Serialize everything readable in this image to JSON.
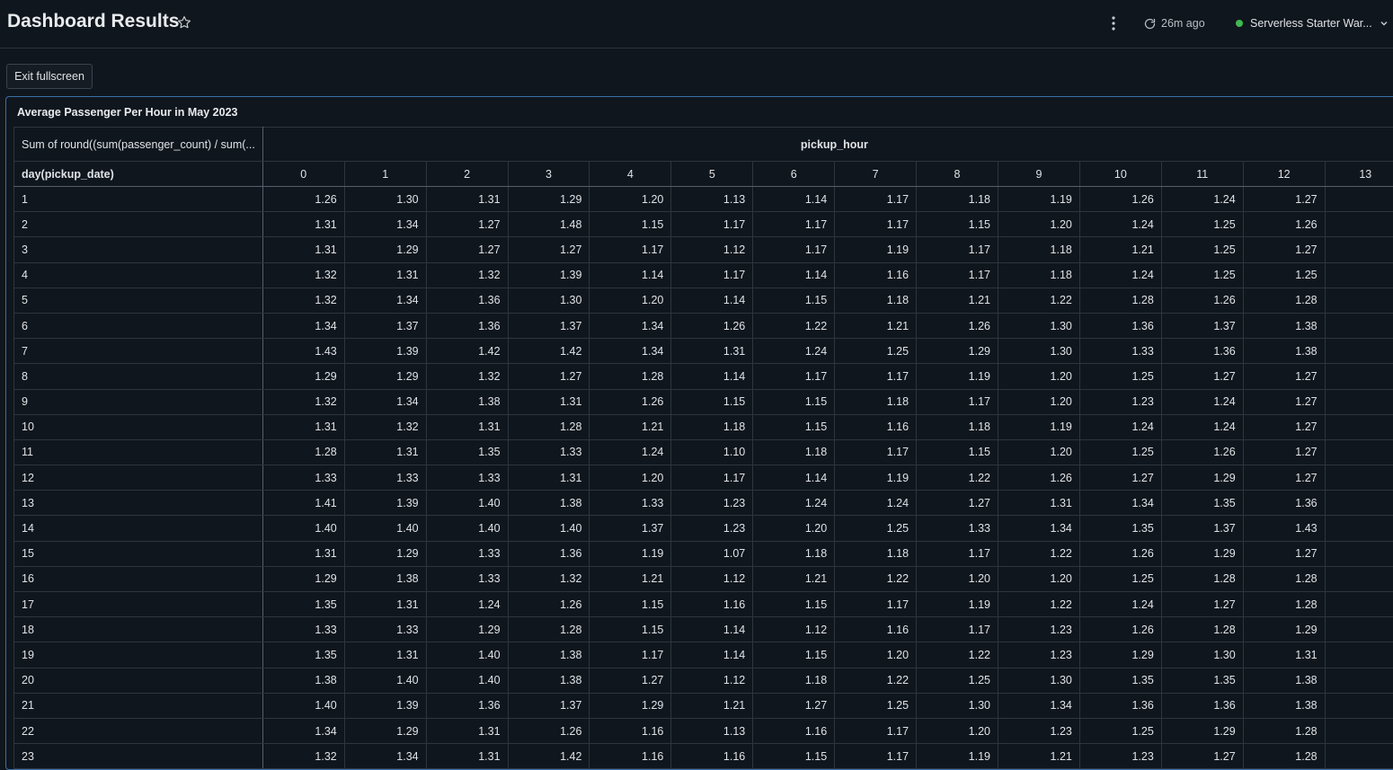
{
  "header": {
    "title": "Dashboard Results",
    "refresh_label": "26m ago",
    "warehouse_label": "Serverless Starter War..."
  },
  "toolbar": {
    "exit_fullscreen_label": "Exit fullscreen"
  },
  "colors": {
    "background": "#10161d",
    "panel_border": "#3a6fa8",
    "status_ok": "#3fb950"
  },
  "panel": {
    "title": "Average Passenger Per Hour in May 2023",
    "measure_label": "Sum of round((sum(passenger_count) / sum(...",
    "column_dimension": "pickup_hour",
    "row_dimension": "day(pickup_date)",
    "columns": [
      "0",
      "1",
      "2",
      "3",
      "4",
      "5",
      "6",
      "7",
      "8",
      "9",
      "10",
      "11",
      "12",
      "13"
    ],
    "rows": [
      {
        "label": "1",
        "values": [
          "1.26",
          "1.30",
          "1.31",
          "1.29",
          "1.20",
          "1.13",
          "1.14",
          "1.17",
          "1.18",
          "1.19",
          "1.26",
          "1.24",
          "1.27",
          ""
        ]
      },
      {
        "label": "2",
        "values": [
          "1.31",
          "1.34",
          "1.27",
          "1.48",
          "1.15",
          "1.17",
          "1.17",
          "1.17",
          "1.15",
          "1.20",
          "1.24",
          "1.25",
          "1.26",
          ""
        ]
      },
      {
        "label": "3",
        "values": [
          "1.31",
          "1.29",
          "1.27",
          "1.27",
          "1.17",
          "1.12",
          "1.17",
          "1.19",
          "1.17",
          "1.18",
          "1.21",
          "1.25",
          "1.27",
          ""
        ]
      },
      {
        "label": "4",
        "values": [
          "1.32",
          "1.31",
          "1.32",
          "1.39",
          "1.14",
          "1.17",
          "1.14",
          "1.16",
          "1.17",
          "1.18",
          "1.24",
          "1.25",
          "1.25",
          ""
        ]
      },
      {
        "label": "5",
        "values": [
          "1.32",
          "1.34",
          "1.36",
          "1.30",
          "1.20",
          "1.14",
          "1.15",
          "1.18",
          "1.21",
          "1.22",
          "1.28",
          "1.26",
          "1.28",
          ""
        ]
      },
      {
        "label": "6",
        "values": [
          "1.34",
          "1.37",
          "1.36",
          "1.37",
          "1.34",
          "1.26",
          "1.22",
          "1.21",
          "1.26",
          "1.30",
          "1.36",
          "1.37",
          "1.38",
          ""
        ]
      },
      {
        "label": "7",
        "values": [
          "1.43",
          "1.39",
          "1.42",
          "1.42",
          "1.34",
          "1.31",
          "1.24",
          "1.25",
          "1.29",
          "1.30",
          "1.33",
          "1.36",
          "1.38",
          ""
        ]
      },
      {
        "label": "8",
        "values": [
          "1.29",
          "1.29",
          "1.32",
          "1.27",
          "1.28",
          "1.14",
          "1.17",
          "1.17",
          "1.19",
          "1.20",
          "1.25",
          "1.27",
          "1.27",
          ""
        ]
      },
      {
        "label": "9",
        "values": [
          "1.32",
          "1.34",
          "1.38",
          "1.31",
          "1.26",
          "1.15",
          "1.15",
          "1.18",
          "1.17",
          "1.20",
          "1.23",
          "1.24",
          "1.27",
          ""
        ]
      },
      {
        "label": "10",
        "values": [
          "1.31",
          "1.32",
          "1.31",
          "1.28",
          "1.21",
          "1.18",
          "1.15",
          "1.16",
          "1.18",
          "1.19",
          "1.24",
          "1.24",
          "1.27",
          ""
        ]
      },
      {
        "label": "11",
        "values": [
          "1.28",
          "1.31",
          "1.35",
          "1.33",
          "1.24",
          "1.10",
          "1.18",
          "1.17",
          "1.15",
          "1.20",
          "1.25",
          "1.26",
          "1.27",
          ""
        ]
      },
      {
        "label": "12",
        "values": [
          "1.33",
          "1.33",
          "1.33",
          "1.31",
          "1.20",
          "1.17",
          "1.14",
          "1.19",
          "1.22",
          "1.26",
          "1.27",
          "1.29",
          "1.27",
          ""
        ]
      },
      {
        "label": "13",
        "values": [
          "1.41",
          "1.39",
          "1.40",
          "1.38",
          "1.33",
          "1.23",
          "1.24",
          "1.24",
          "1.27",
          "1.31",
          "1.34",
          "1.35",
          "1.36",
          ""
        ]
      },
      {
        "label": "14",
        "values": [
          "1.40",
          "1.40",
          "1.40",
          "1.40",
          "1.37",
          "1.23",
          "1.20",
          "1.25",
          "1.33",
          "1.34",
          "1.35",
          "1.37",
          "1.43",
          ""
        ]
      },
      {
        "label": "15",
        "values": [
          "1.31",
          "1.29",
          "1.33",
          "1.36",
          "1.19",
          "1.07",
          "1.18",
          "1.18",
          "1.17",
          "1.22",
          "1.26",
          "1.29",
          "1.27",
          ""
        ]
      },
      {
        "label": "16",
        "values": [
          "1.29",
          "1.38",
          "1.33",
          "1.32",
          "1.21",
          "1.12",
          "1.21",
          "1.22",
          "1.20",
          "1.20",
          "1.25",
          "1.28",
          "1.28",
          ""
        ]
      },
      {
        "label": "17",
        "values": [
          "1.35",
          "1.31",
          "1.24",
          "1.26",
          "1.15",
          "1.16",
          "1.15",
          "1.17",
          "1.19",
          "1.22",
          "1.24",
          "1.27",
          "1.28",
          ""
        ]
      },
      {
        "label": "18",
        "values": [
          "1.33",
          "1.33",
          "1.29",
          "1.28",
          "1.15",
          "1.14",
          "1.12",
          "1.16",
          "1.17",
          "1.23",
          "1.26",
          "1.28",
          "1.29",
          ""
        ]
      },
      {
        "label": "19",
        "values": [
          "1.35",
          "1.31",
          "1.40",
          "1.38",
          "1.17",
          "1.14",
          "1.15",
          "1.20",
          "1.22",
          "1.23",
          "1.29",
          "1.30",
          "1.31",
          ""
        ]
      },
      {
        "label": "20",
        "values": [
          "1.38",
          "1.40",
          "1.40",
          "1.38",
          "1.27",
          "1.12",
          "1.18",
          "1.22",
          "1.25",
          "1.30",
          "1.35",
          "1.35",
          "1.38",
          ""
        ]
      },
      {
        "label": "21",
        "values": [
          "1.40",
          "1.39",
          "1.36",
          "1.37",
          "1.29",
          "1.21",
          "1.27",
          "1.25",
          "1.30",
          "1.34",
          "1.36",
          "1.36",
          "1.38",
          ""
        ]
      },
      {
        "label": "22",
        "values": [
          "1.34",
          "1.29",
          "1.31",
          "1.26",
          "1.16",
          "1.13",
          "1.16",
          "1.17",
          "1.20",
          "1.23",
          "1.25",
          "1.29",
          "1.28",
          ""
        ]
      },
      {
        "label": "23",
        "values": [
          "1.32",
          "1.34",
          "1.31",
          "1.42",
          "1.16",
          "1.16",
          "1.15",
          "1.17",
          "1.19",
          "1.21",
          "1.23",
          "1.27",
          "1.28",
          ""
        ]
      }
    ]
  }
}
